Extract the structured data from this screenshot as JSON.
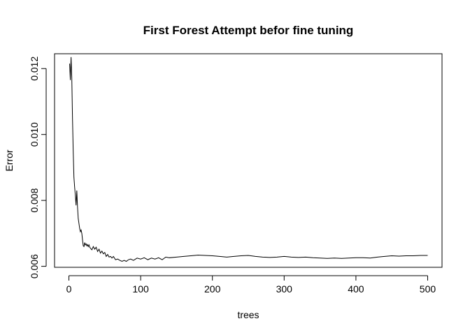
{
  "chart_data": {
    "type": "line",
    "title": "First Forest Attempt befor fine tuning",
    "xlabel": "trees",
    "ylabel": "Error",
    "xlim": [
      -20,
      520
    ],
    "ylim": [
      0.00597,
      0.01245
    ],
    "xticks": [
      0,
      100,
      200,
      300,
      400,
      500
    ],
    "xtick_labels": [
      "0",
      "100",
      "200",
      "300",
      "400",
      "500"
    ],
    "yticks": [
      0.006,
      0.008,
      0.01,
      0.012
    ],
    "ytick_labels": [
      "0.006",
      "0.008",
      "0.010",
      "0.012"
    ],
    "grid": false,
    "legend": "none",
    "line_color": "#000000",
    "series": [
      {
        "x": [
          1,
          2,
          3,
          4,
          5,
          6,
          7,
          8,
          9,
          10,
          11,
          12,
          13,
          14,
          15,
          16,
          17,
          18,
          19,
          20,
          21,
          22,
          23,
          24,
          25,
          26,
          27,
          28,
          29,
          30,
          32,
          34,
          36,
          38,
          40,
          42,
          44,
          46,
          48,
          50,
          52,
          54,
          56,
          58,
          60,
          62,
          65,
          68,
          71,
          74,
          77,
          80,
          83,
          86,
          90,
          95,
          100,
          105,
          110,
          115,
          120,
          125,
          130,
          135,
          140,
          150,
          160,
          170,
          180,
          190,
          200,
          210,
          220,
          230,
          240,
          250,
          260,
          270,
          280,
          290,
          300,
          310,
          320,
          330,
          340,
          350,
          360,
          370,
          380,
          390,
          400,
          410,
          420,
          430,
          440,
          450,
          460,
          470,
          480,
          490,
          500
        ],
        "y": [
          0.01215,
          0.01165,
          0.01235,
          0.01175,
          0.0105,
          0.0095,
          0.0087,
          0.0084,
          0.00815,
          0.00785,
          0.0083,
          0.0078,
          0.00745,
          0.0073,
          0.00715,
          0.00705,
          0.0071,
          0.007,
          0.0068,
          0.00662,
          0.0066,
          0.00672,
          0.00665,
          0.00668,
          0.00662,
          0.00666,
          0.0066,
          0.00665,
          0.00658,
          0.00655,
          0.0065,
          0.0066,
          0.00652,
          0.00658,
          0.00645,
          0.00652,
          0.0064,
          0.00646,
          0.00638,
          0.00642,
          0.0063,
          0.00636,
          0.00628,
          0.0063,
          0.00625,
          0.0063,
          0.0062,
          0.00622,
          0.00618,
          0.00615,
          0.00618,
          0.00615,
          0.0062,
          0.00622,
          0.00618,
          0.00625,
          0.00622,
          0.00626,
          0.0062,
          0.00625,
          0.00622,
          0.00626,
          0.0062,
          0.00628,
          0.00626,
          0.00628,
          0.0063,
          0.00632,
          0.00634,
          0.00633,
          0.00632,
          0.0063,
          0.00628,
          0.0063,
          0.00632,
          0.00633,
          0.0063,
          0.00628,
          0.00627,
          0.00628,
          0.0063,
          0.00628,
          0.00627,
          0.00628,
          0.00626,
          0.00625,
          0.00624,
          0.00625,
          0.00624,
          0.00625,
          0.00626,
          0.00626,
          0.00625,
          0.00628,
          0.0063,
          0.00632,
          0.00631,
          0.00632,
          0.00632,
          0.00633,
          0.00633
        ]
      }
    ]
  }
}
